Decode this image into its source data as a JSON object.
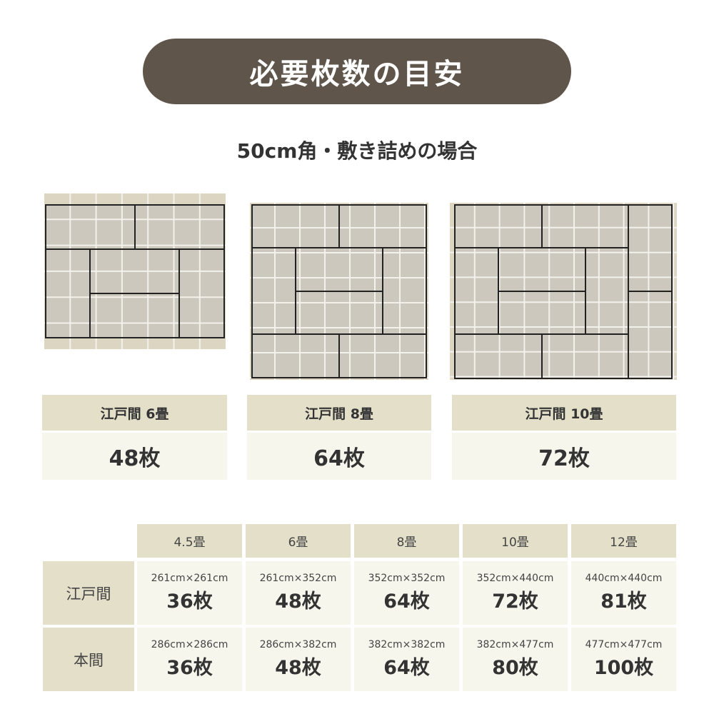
{
  "title": "必要枚数の目安",
  "subtitle": "50cm角・敷き詰めの場合",
  "cards": [
    {
      "label": "江戸間 6畳",
      "count": "48枚"
    },
    {
      "label": "江戸間 8畳",
      "count": "64枚"
    },
    {
      "label": "江戸間 10畳",
      "count": "72枚"
    }
  ],
  "colors": {
    "title_bg": "#5f554b",
    "header_bg": "#e3dfc8",
    "cell_bg": "#f7f6ed",
    "tile": "#ccc8bd",
    "tile_edge": "#dcd5c2"
  },
  "table": {
    "columns": [
      "4.5畳",
      "6畳",
      "8畳",
      "10畳",
      "12畳"
    ],
    "rows": [
      {
        "label": "江戸間",
        "cells": [
          {
            "dim": "261cm×261cm",
            "count": "36枚"
          },
          {
            "dim": "261cm×352cm",
            "count": "48枚"
          },
          {
            "dim": "352cm×352cm",
            "count": "64枚"
          },
          {
            "dim": "352cm×440cm",
            "count": "72枚"
          },
          {
            "dim": "440cm×440cm",
            "count": "81枚"
          }
        ]
      },
      {
        "label": "本間",
        "cells": [
          {
            "dim": "286cm×286cm",
            "count": "36枚"
          },
          {
            "dim": "286cm×382cm",
            "count": "48枚"
          },
          {
            "dim": "382cm×382cm",
            "count": "64枚"
          },
          {
            "dim": "382cm×477cm",
            "count": "80枚"
          },
          {
            "dim": "477cm×477cm",
            "count": "100枚"
          }
        ]
      }
    ]
  }
}
